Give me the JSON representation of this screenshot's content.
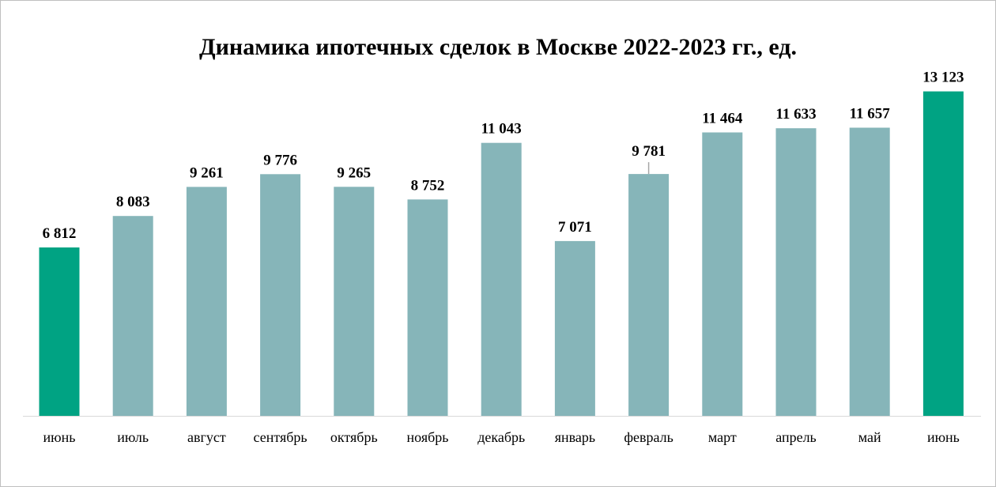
{
  "chart_data": {
    "type": "bar",
    "title": "Динамика ипотечных сделок в Москве 2022-2023 гг., ед.",
    "categories": [
      "июнь",
      "июль",
      "август",
      "сентябрь",
      "октябрь",
      "ноябрь",
      "декабрь",
      "январь",
      "февраль",
      "март",
      "апрель",
      "май",
      "июнь"
    ],
    "values": [
      6812,
      8083,
      9261,
      9776,
      9265,
      8752,
      11043,
      7071,
      9781,
      11464,
      11633,
      11657,
      13123
    ],
    "data_labels": [
      "6 812",
      "8 083",
      "9 261",
      "9 776",
      "9 265",
      "8 752",
      "11 043",
      "7 071",
      "9 781",
      "11 464",
      "11 633",
      "11 657",
      "13 123"
    ],
    "highlight_indices": [
      0,
      12
    ],
    "leader_line_for": [
      8
    ],
    "ylim": [
      0,
      13910
    ],
    "grid": false,
    "legend": "none",
    "xlabel": "",
    "ylabel": "",
    "colors": {
      "bar": "#86b5b9",
      "highlight": "#00a383",
      "axis": "#d9d9d9",
      "leader": "#a6a6a6"
    }
  }
}
